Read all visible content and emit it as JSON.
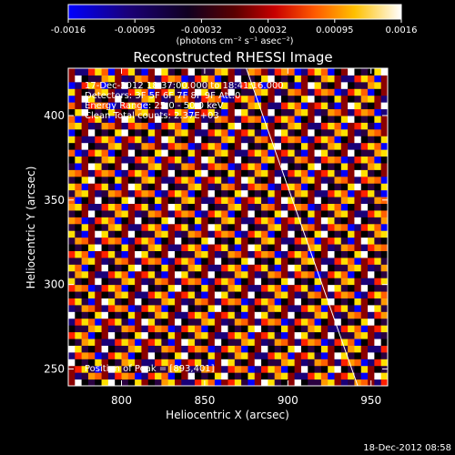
{
  "chart_data": {
    "type": "heatmap",
    "title": "Reconstructed RHESSI Image",
    "xlabel": "Heliocentric X (arcsec)",
    "ylabel": "Heliocentric Y (arcsec)",
    "xlim": [
      768,
      960
    ],
    "ylim": [
      240,
      428
    ],
    "xticks": [
      800,
      850,
      900,
      950
    ],
    "yticks": [
      250,
      300,
      350,
      400
    ],
    "grid": false,
    "colorbar": {
      "ticks": [
        "-0.0016",
        "-0.00095",
        "-0.00032",
        "0.00032",
        "0.00095",
        "0.0016"
      ],
      "range": [
        -0.0016,
        0.0016
      ],
      "units": "(photons cm⁻² s⁻¹ asec⁻²)",
      "colormap": [
        "#0000ff",
        "#1a0078",
        "#000000",
        "#8a0000",
        "#ff2000",
        "#ff9a00",
        "#ffe000",
        "#ffffff"
      ]
    },
    "annotations": [
      "17-Dec-2012 18:37:00.000 to 18:41:16.000",
      "Detectors: 3F 5F 6F 7F 8F 9F Att:0",
      "Energy Range: 25.0 - 50.0 keV",
      "Clean   Total counts: 2.37E+03",
      "Position of Peak = [893,401]"
    ],
    "limb_line": {
      "x": [
        875,
        942
      ],
      "y": [
        428,
        240
      ]
    },
    "pattern": {
      "stripe_period_arcsec": 19,
      "pixel_arcsec": 4
    }
  },
  "footer": {
    "timestamp": "18-Dec-2012 08:58"
  }
}
